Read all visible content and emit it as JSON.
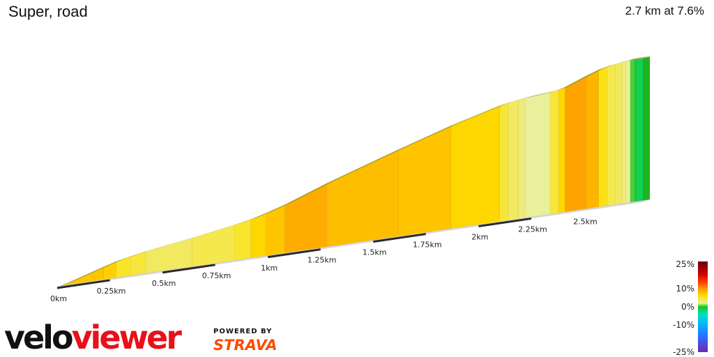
{
  "header": {
    "title": "Super, road",
    "summary": "2.7 km at 7.6%"
  },
  "chart_data": {
    "type": "area",
    "title": "Super, road",
    "subtitle": "2.7 km at 7.6%",
    "x_unit": "km",
    "xlim": [
      0,
      2.7
    ],
    "x_ticks": [
      {
        "value": 0,
        "label": "0km"
      },
      {
        "value": 0.25,
        "label": "0.25km"
      },
      {
        "value": 0.5,
        "label": "0.5km"
      },
      {
        "value": 0.75,
        "label": "0.75km"
      },
      {
        "value": 1.0,
        "label": "1km"
      },
      {
        "value": 1.25,
        "label": "1.25km"
      },
      {
        "value": 1.5,
        "label": "1.5km"
      },
      {
        "value": 1.75,
        "label": "1.75km"
      },
      {
        "value": 2.0,
        "label": "2km"
      },
      {
        "value": 2.25,
        "label": "2.25km"
      },
      {
        "value": 2.5,
        "label": "2.5km"
      }
    ],
    "segments": [
      {
        "start": 0.0,
        "end": 0.05,
        "gradient": 6.5
      },
      {
        "start": 0.05,
        "end": 0.22,
        "gradient": 7.5
      },
      {
        "start": 0.22,
        "end": 0.28,
        "gradient": 7.0
      },
      {
        "start": 0.28,
        "end": 0.35,
        "gradient": 5.0
      },
      {
        "start": 0.35,
        "end": 0.42,
        "gradient": 4.5
      },
      {
        "start": 0.42,
        "end": 0.64,
        "gradient": 3.5
      },
      {
        "start": 0.64,
        "end": 0.84,
        "gradient": 4.0
      },
      {
        "start": 0.84,
        "end": 0.92,
        "gradient": 4.8
      },
      {
        "start": 0.92,
        "end": 0.99,
        "gradient": 6.5
      },
      {
        "start": 0.99,
        "end": 1.08,
        "gradient": 7.5
      },
      {
        "start": 1.08,
        "end": 1.28,
        "gradient": 9.0
      },
      {
        "start": 1.28,
        "end": 1.62,
        "gradient": 8.0
      },
      {
        "start": 1.62,
        "end": 1.87,
        "gradient": 7.6
      },
      {
        "start": 1.87,
        "end": 2.1,
        "gradient": 6.5
      },
      {
        "start": 2.1,
        "end": 2.14,
        "gradient": 4.5
      },
      {
        "start": 2.14,
        "end": 2.19,
        "gradient": 3.5
      },
      {
        "start": 2.19,
        "end": 2.22,
        "gradient": 3.0
      },
      {
        "start": 2.22,
        "end": 2.34,
        "gradient": 2.0
      },
      {
        "start": 2.34,
        "end": 2.38,
        "gradient": 4.5
      },
      {
        "start": 2.38,
        "end": 2.41,
        "gradient": 6.5
      },
      {
        "start": 2.41,
        "end": 2.51,
        "gradient": 9.5
      },
      {
        "start": 2.51,
        "end": 2.57,
        "gradient": 8.5
      },
      {
        "start": 2.57,
        "end": 2.61,
        "gradient": 5.5
      },
      {
        "start": 2.61,
        "end": 2.65,
        "gradient": 4.0
      },
      {
        "start": 2.65,
        "end": 2.68,
        "gradient": 3.5
      },
      {
        "start": 2.68,
        "end": 2.7,
        "gradient": 3.0
      },
      {
        "start": 2.7,
        "end": 2.72,
        "gradient": 2.0
      },
      {
        "start": 2.72,
        "end": 2.74,
        "gradient": 0.5
      },
      {
        "start": 2.74,
        "end": 2.75,
        "gradient": -0.5
      },
      {
        "start": 2.75,
        "end": 2.78,
        "gradient": -1.5
      }
    ],
    "legend": {
      "labels": [
        "25%",
        "10%",
        "0%",
        "-10%",
        "-25%"
      ],
      "stops": [
        {
          "value": 25,
          "color": "#6b0000"
        },
        {
          "value": 18,
          "color": "#d10000"
        },
        {
          "value": 13,
          "color": "#ff4a00"
        },
        {
          "value": 10,
          "color": "#ff9a00"
        },
        {
          "value": 6,
          "color": "#ffe000"
        },
        {
          "value": 2,
          "color": "#e9ef9a"
        },
        {
          "value": 0,
          "color": "#18c818"
        },
        {
          "value": -4,
          "color": "#00e0c0"
        },
        {
          "value": -10,
          "color": "#00b4ff"
        },
        {
          "value": -16,
          "color": "#2c70ff"
        },
        {
          "value": -25,
          "color": "#6a2cb0"
        }
      ]
    }
  },
  "branding": {
    "logo_part1": "velo",
    "logo_part2": "viewer",
    "powered_by": "POWERED BY",
    "strava": "STRAVA",
    "colors": {
      "velo": "#111111",
      "viewer": "#e8101a",
      "strava": "#fc4c02"
    }
  }
}
